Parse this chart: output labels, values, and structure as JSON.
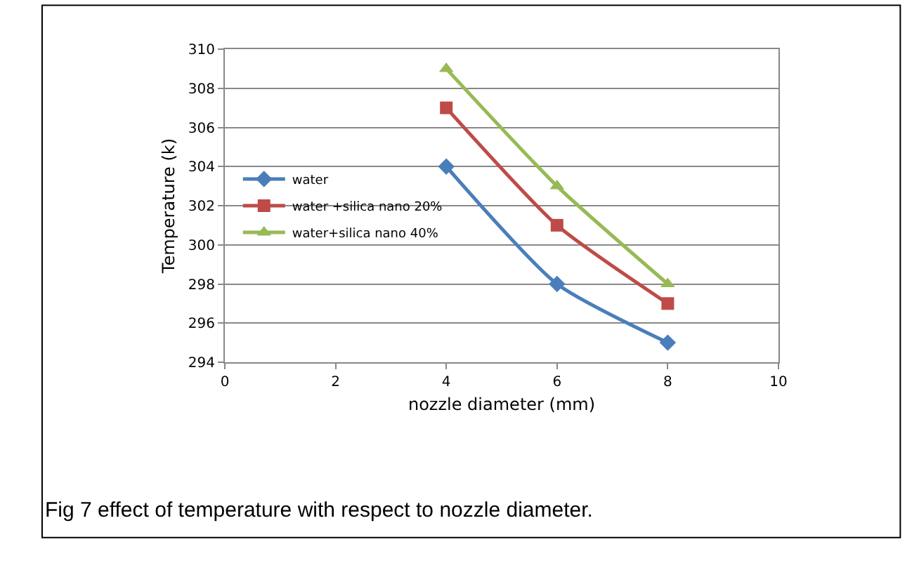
{
  "chart_data": {
    "type": "line",
    "xlabel": "nozzle diameter (mm)",
    "ylabel": "Temperature (k)",
    "x": [
      4,
      6,
      8
    ],
    "series": [
      {
        "name": "water",
        "color": "#4a7ebb",
        "values": [
          304,
          298,
          295
        ],
        "marker": "diamond"
      },
      {
        "name": "water +silica nano 20%",
        "color": "#be4b48",
        "values": [
          307,
          301,
          297
        ],
        "marker": "square"
      },
      {
        "name": "water+silica nano 40%",
        "color": "#98b954",
        "values": [
          309,
          303,
          298
        ],
        "marker": "triangle"
      }
    ],
    "xlim": [
      0,
      10
    ],
    "xticks": [
      0,
      2,
      4,
      6,
      8,
      10
    ],
    "ylim": [
      294,
      310
    ],
    "yticks": [
      294,
      296,
      298,
      300,
      302,
      304,
      306,
      308,
      310
    ],
    "grid": "y",
    "legend": "left",
    "line_style": "solid",
    "annotations": [
      "Fig 7 effect of temperature with respect to nozzle diameter."
    ]
  }
}
